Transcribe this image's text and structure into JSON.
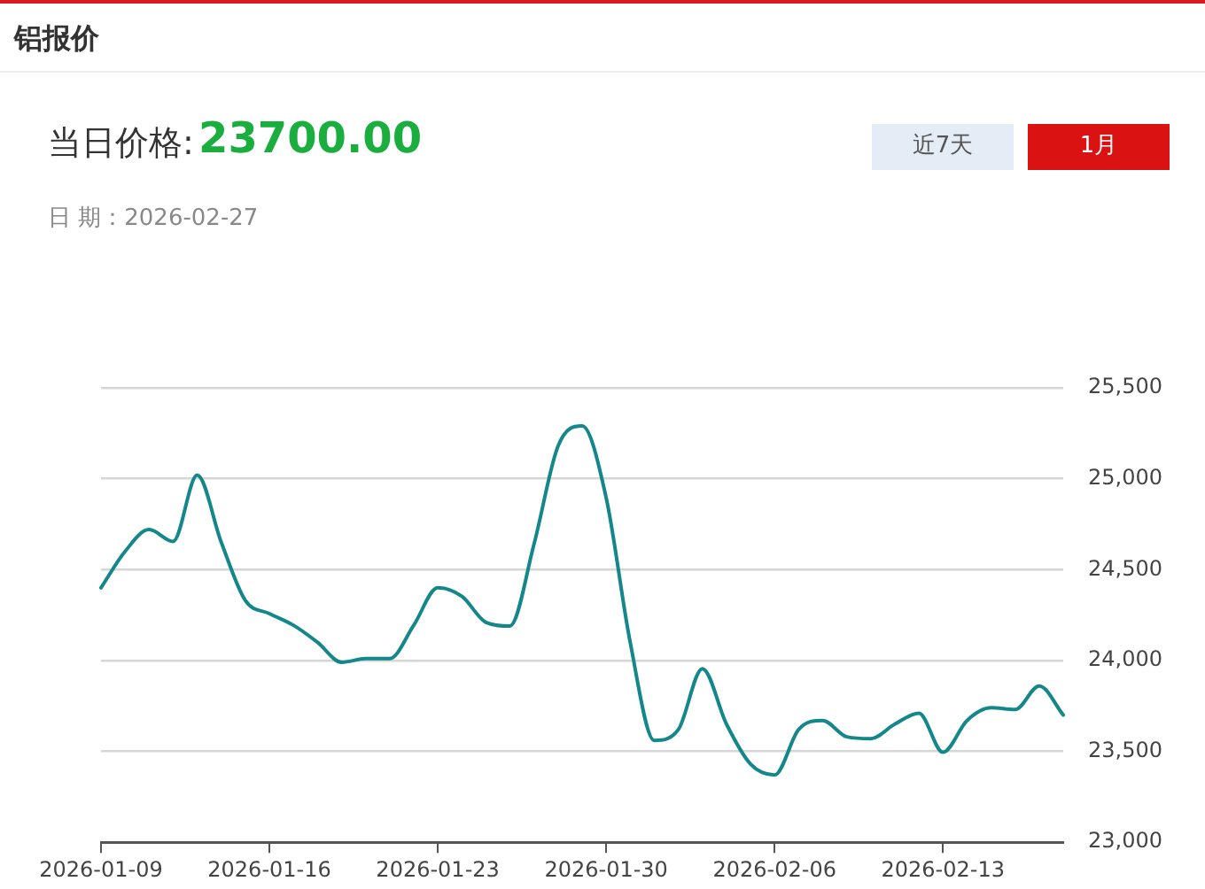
{
  "chart_data": {
    "type": "line",
    "title": "铝报价",
    "annotations": [
      "当日价格:",
      "23700.00",
      "日 期：2026-02-27",
      "近7天",
      "1月"
    ],
    "categories": [
      "2026-01-09",
      null,
      null,
      null,
      null,
      null,
      null,
      "2026-01-16",
      null,
      null,
      null,
      null,
      null,
      null,
      "2026-01-23",
      null,
      null,
      null,
      null,
      null,
      null,
      "2026-01-30",
      null,
      null,
      null,
      null,
      null,
      null,
      "2026-02-06",
      null,
      null,
      null,
      null,
      null,
      null,
      "2026-02-13",
      null,
      null,
      null,
      null,
      null
    ],
    "series": [
      {
        "color": "#13878a",
        "values": [
          24400,
          24600,
          24720,
          24655,
          25020,
          24650,
          24330,
          24258,
          24194,
          24100,
          23990,
          24010,
          24010,
          24194,
          24400,
          24353,
          24210,
          24190,
          24640,
          25180,
          25290,
          24895,
          24099,
          23560,
          23620,
          23955,
          23650,
          23430,
          23370,
          23620,
          23670,
          23580,
          23570,
          23650,
          23710,
          23495,
          23670,
          23740,
          23730,
          23860,
          23700
        ]
      }
    ],
    "ylim": [
      23000,
      25500
    ],
    "yticks": [
      {
        "value": 23000,
        "label": "23,000"
      },
      {
        "value": 23500,
        "label": "23,500"
      },
      {
        "value": 24000,
        "label": "24,000"
      },
      {
        "value": 24500,
        "label": "24,500"
      },
      {
        "value": 25000,
        "label": "25,000"
      },
      {
        "value": 25500,
        "label": "25,500"
      }
    ],
    "grid": "y"
  }
}
